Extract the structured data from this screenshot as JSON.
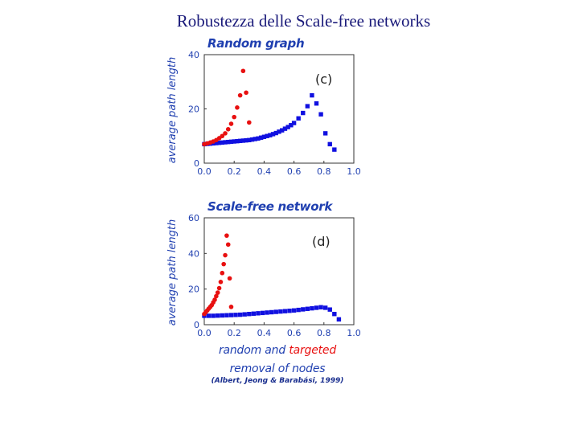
{
  "slide_title": "Robustezza delle Scale-free networks",
  "captions": {
    "random_and": "random and",
    "targeted": "targeted",
    "removal_of_nodes": "removal of nodes",
    "citation": "(Albert, Jeong & Barabási, 1999)"
  },
  "colors": {
    "random": "#1010e0",
    "targeted": "#e81010",
    "text": "#1f3fb0",
    "axis": "#333333"
  },
  "chart_data": [
    {
      "type": "scatter",
      "title": "Random graph",
      "panel_label": "(c)",
      "xlabel": "",
      "ylabel": "average path length",
      "xlim": [
        0.0,
        1.0
      ],
      "ylim": [
        0,
        40
      ],
      "xticks": [
        "0.0",
        "0.2",
        "0.4",
        "0.6",
        "0.8",
        "1.0"
      ],
      "yticks": [
        "0",
        "20",
        "40"
      ],
      "series": [
        {
          "color": "#1010e0",
          "marker": "square",
          "x": [
            0.0,
            0.02,
            0.04,
            0.06,
            0.08,
            0.1,
            0.12,
            0.14,
            0.16,
            0.18,
            0.2,
            0.22,
            0.24,
            0.26,
            0.28,
            0.3,
            0.32,
            0.34,
            0.36,
            0.38,
            0.4,
            0.42,
            0.44,
            0.46,
            0.48,
            0.5,
            0.52,
            0.54,
            0.56,
            0.58,
            0.6,
            0.63,
            0.66,
            0.69,
            0.72,
            0.75,
            0.78,
            0.81,
            0.84,
            0.87
          ],
          "y": [
            7,
            7.1,
            7.2,
            7.3,
            7.4,
            7.5,
            7.6,
            7.7,
            7.8,
            7.9,
            8.0,
            8.1,
            8.2,
            8.3,
            8.4,
            8.5,
            8.7,
            8.9,
            9.1,
            9.4,
            9.7,
            10.0,
            10.3,
            10.7,
            11.1,
            11.6,
            12.1,
            12.7,
            13.3,
            14.0,
            14.8,
            16.5,
            18.5,
            21,
            25,
            22,
            18,
            11,
            7,
            5
          ]
        },
        {
          "color": "#e81010",
          "marker": "circle",
          "x": [
            0.0,
            0.02,
            0.04,
            0.06,
            0.08,
            0.1,
            0.12,
            0.14,
            0.16,
            0.18,
            0.2,
            0.22,
            0.24,
            0.26,
            0.28,
            0.3
          ],
          "y": [
            7,
            7.3,
            7.6,
            8.0,
            8.5,
            9.2,
            10.0,
            11.0,
            12.5,
            14.5,
            17,
            20.5,
            25,
            34,
            26,
            15
          ]
        }
      ]
    },
    {
      "type": "scatter",
      "title": "Scale-free network",
      "panel_label": "(d)",
      "xlabel": "",
      "ylabel": "average path length",
      "xlim": [
        0.0,
        1.0
      ],
      "ylim": [
        0,
        60
      ],
      "xticks": [
        "0.0",
        "0.2",
        "0.4",
        "0.6",
        "0.8",
        "1.0"
      ],
      "yticks": [
        "0",
        "20",
        "40",
        "60"
      ],
      "series": [
        {
          "color": "#1010e0",
          "marker": "square",
          "x": [
            0.0,
            0.03,
            0.06,
            0.09,
            0.12,
            0.15,
            0.18,
            0.21,
            0.24,
            0.27,
            0.3,
            0.33,
            0.36,
            0.39,
            0.42,
            0.45,
            0.48,
            0.51,
            0.54,
            0.57,
            0.6,
            0.63,
            0.66,
            0.69,
            0.72,
            0.75,
            0.78,
            0.81,
            0.84,
            0.87,
            0.9
          ],
          "y": [
            5,
            5,
            5,
            5.1,
            5.2,
            5.3,
            5.4,
            5.5,
            5.6,
            5.8,
            6.0,
            6.2,
            6.4,
            6.6,
            6.8,
            7.0,
            7.2,
            7.4,
            7.6,
            7.8,
            8.0,
            8.3,
            8.6,
            8.9,
            9.2,
            9.5,
            9.8,
            9.5,
            8.5,
            6,
            3
          ]
        },
        {
          "color": "#e81010",
          "marker": "circle",
          "x": [
            0.0,
            0.01,
            0.02,
            0.03,
            0.04,
            0.05,
            0.06,
            0.07,
            0.08,
            0.09,
            0.1,
            0.11,
            0.12,
            0.13,
            0.14,
            0.15,
            0.16,
            0.17,
            0.18
          ],
          "y": [
            6,
            7,
            8,
            9,
            10,
            11,
            12.5,
            14,
            16,
            18,
            20.5,
            24,
            29,
            34,
            39,
            50,
            45,
            26,
            10
          ]
        }
      ]
    }
  ]
}
